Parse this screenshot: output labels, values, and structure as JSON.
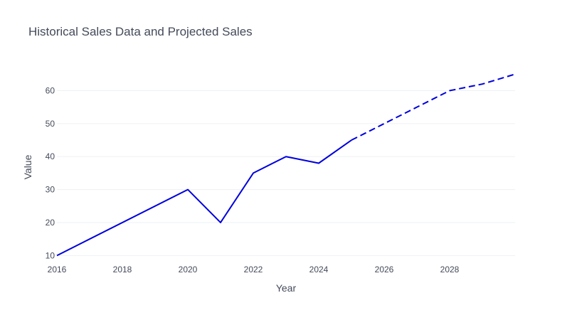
{
  "chart_data": {
    "type": "line",
    "title": "Historical Sales Data and Projected Sales",
    "xlabel": "Year",
    "ylabel": "Value",
    "xlim": [
      2016,
      2030
    ],
    "ylim": [
      9,
      67
    ],
    "xticks": [
      2016,
      2018,
      2020,
      2022,
      2024,
      2026,
      2028
    ],
    "yticks": [
      10,
      20,
      30,
      40,
      50,
      60
    ],
    "grid": "horizontal",
    "legend": "none",
    "series": [
      {
        "style": "solid",
        "color": "#0000dd",
        "x": [
          2016,
          2020,
          2021,
          2022,
          2023,
          2024,
          2025
        ],
        "y": [
          10,
          30,
          20,
          35,
          40,
          38,
          45
        ]
      },
      {
        "style": "dashed",
        "color": "#0000dd",
        "x": [
          2025,
          2026,
          2027,
          2028,
          2029,
          2030
        ],
        "y": [
          45,
          50,
          55,
          60,
          62,
          65
        ]
      }
    ]
  }
}
